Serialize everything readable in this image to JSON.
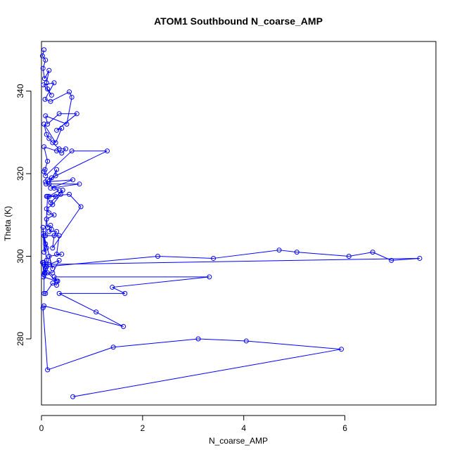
{
  "chart_data": {
    "type": "scatter",
    "title": "ATOM1 Southbound N_coarse_AMP",
    "xlabel": "N_coarse_AMP",
    "ylabel": "Theta (K)",
    "xlim": [
      0,
      7.8
    ],
    "ylim": [
      264,
      352
    ],
    "xticks": [
      0,
      2,
      4,
      6
    ],
    "yticks": [
      280,
      300,
      320,
      340
    ],
    "grid": false,
    "legend": "none",
    "color": "#0000ff",
    "connected": true,
    "x": [
      0.05,
      0.02,
      0.08,
      0.03,
      0.06,
      0.15,
      0.1,
      0.12,
      0.2,
      0.04,
      0.25,
      0.07,
      0.18,
      0.55,
      0.6,
      0.5,
      0.08,
      0.12,
      0.35,
      0.7,
      0.3,
      0.4,
      0.28,
      0.05,
      0.1,
      0.15,
      0.22,
      0.35,
      0.48,
      0.4,
      0.3,
      0.05,
      0.12,
      0.07,
      0.05,
      0.08,
      0.6,
      1.3,
      0.2,
      0.15,
      0.3,
      0.28,
      0.12,
      0.09,
      0.75,
      0.18,
      0.62,
      0.08,
      0.25,
      0.35,
      0.15,
      0.28,
      0.1,
      0.18,
      0.42,
      0.38,
      0.22,
      0.1,
      0.15,
      0.25,
      0.1,
      0.12,
      0.18,
      0.2,
      0.15,
      0.3,
      0.25,
      0.22,
      0.78,
      0.55,
      0.12,
      0.08,
      0.35,
      0.3,
      0.4,
      0.15,
      0.22,
      0.05,
      0.08,
      0.1,
      0.05,
      0.03,
      0.04,
      0.1,
      0.15,
      0.35,
      0.22,
      0.12,
      0.3,
      0.04,
      0.07,
      0.1,
      2.3,
      3.4,
      4.7,
      5.05,
      6.08,
      6.55,
      6.92,
      7.48,
      0.05,
      0.06,
      0.08,
      0.1,
      0.05,
      0.02,
      0.05,
      0.05,
      0.08,
      0.22,
      0.3,
      0.32,
      0.25,
      3.32,
      1.4,
      1.65,
      0.35,
      1.08,
      1.62,
      0.05,
      0.03,
      0.12,
      1.42,
      3.1,
      4.05,
      5.93,
      0.62
    ],
    "y": [
      350.0,
      348.5,
      347.5,
      345.5,
      343.0,
      345.0,
      342.0,
      340.5,
      339.0,
      341.5,
      342.0,
      338.0,
      337.5,
      339.8,
      338.5,
      332.0,
      334.0,
      332.0,
      334.5,
      334.5,
      330.5,
      331.0,
      327.5,
      332.0,
      329.5,
      328.5,
      327.5,
      326.0,
      326.0,
      325.0,
      325.5,
      326.5,
      323.0,
      321.0,
      320.5,
      319.5,
      325.5,
      325.5,
      319.0,
      317.5,
      321.0,
      319.5,
      318.5,
      317.5,
      317.5,
      316.5,
      318.5,
      318.0,
      316.5,
      316.0,
      314.5,
      314.5,
      314.5,
      313.0,
      316.0,
      315.0,
      312.5,
      311.5,
      310.5,
      310.0,
      309.0,
      307.0,
      307.5,
      306.5,
      306.0,
      306.0,
      305.0,
      302.0,
      312.0,
      315.0,
      314.5,
      305.0,
      305.0,
      300.5,
      300.5,
      300.0,
      297.0,
      305.0,
      303.0,
      302.0,
      301.0,
      307.0,
      305.5,
      299.0,
      298.0,
      299.0,
      296.0,
      296.0,
      294.0,
      295.0,
      296.0,
      297.5,
      300.0,
      299.5,
      301.5,
      301.0,
      300.0,
      301.0,
      299.0,
      299.5,
      298.0,
      296.0,
      297.0,
      297.5,
      298.5,
      298.5,
      295.5,
      291.0,
      291.0,
      293.5,
      293.0,
      294.0,
      295.0,
      295.0,
      292.5,
      291.0,
      291.0,
      286.5,
      283.0,
      288.0,
      287.5,
      272.5,
      278.0,
      280.0,
      279.5,
      277.5,
      266.0
    ]
  }
}
